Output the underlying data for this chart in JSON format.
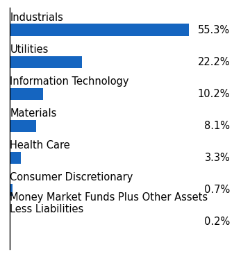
{
  "categories": [
    "Money Market Funds Plus Other Assets\nLess Liabilities",
    "Consumer Discretionary",
    "Health Care",
    "Materials",
    "Information Technology",
    "Utilities",
    "Industrials"
  ],
  "values": [
    0.2,
    0.7,
    3.3,
    8.1,
    10.2,
    22.2,
    55.3
  ],
  "labels": [
    "0.2%",
    "0.7%",
    "3.3%",
    "8.1%",
    "10.2%",
    "22.2%",
    "55.3%"
  ],
  "bar_color": "#1565C0",
  "background_color": "#ffffff",
  "xlim": [
    0,
    68
  ],
  "label_fontsize": 10.5,
  "value_fontsize": 10.5,
  "bar_height": 0.38
}
